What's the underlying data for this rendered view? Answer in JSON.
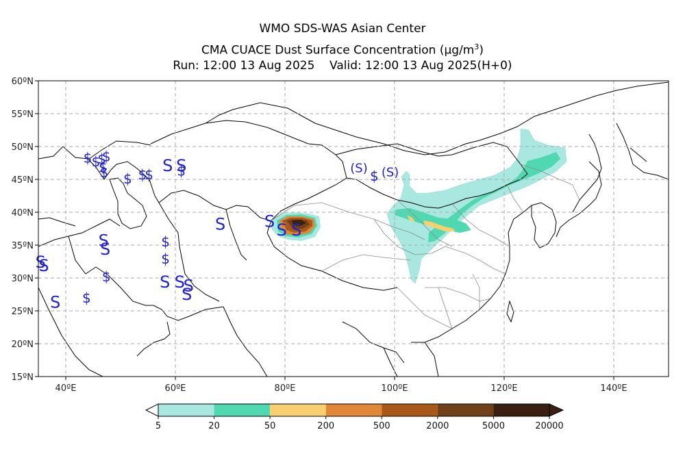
{
  "header": {
    "line1": "WMO SDS-WAS Asian Center",
    "line2_main": "CMA CUACE Dust Surface Concentration ",
    "line2_unit": "(μg/m",
    "line2_sup": "3",
    "line2_close": ")",
    "line3": "Run: 12:00 13 Aug 2025    Valid: 12:00 13 Aug 2025(H+0)"
  },
  "map": {
    "lon_range": [
      35,
      150
    ],
    "lat_range": [
      15,
      60
    ],
    "lat_ticks": [
      {
        "value": 60,
        "label": "60ºN"
      },
      {
        "value": 55,
        "label": "55ºN"
      },
      {
        "value": 50,
        "label": "50ºN"
      },
      {
        "value": 45,
        "label": "45ºN"
      },
      {
        "value": 40,
        "label": "40ºN"
      },
      {
        "value": 35,
        "label": "35ºN"
      },
      {
        "value": 30,
        "label": "30ºN"
      },
      {
        "value": 25,
        "label": "25ºN"
      },
      {
        "value": 20,
        "label": "20ºN"
      },
      {
        "value": 15,
        "label": "15ºN"
      }
    ],
    "lon_ticks": [
      {
        "value": 40,
        "label": "40ºE"
      },
      {
        "value": 60,
        "label": "60ºE"
      },
      {
        "value": 80,
        "label": "80ºE"
      },
      {
        "value": 100,
        "label": "100ºE"
      },
      {
        "value": 120,
        "label": "120ºE"
      },
      {
        "value": 140,
        "label": "140ºE"
      }
    ],
    "grid_lines": true
  },
  "colorbar": {
    "colors": [
      "#a8e8e0",
      "#50d8b0",
      "#f8d070",
      "#e08838",
      "#a85818",
      "#704018",
      "#3a2010"
    ],
    "labels": [
      "5",
      "20",
      "50",
      "200",
      "500",
      "2000",
      "5000",
      "20000"
    ]
  },
  "dust_symbols": [
    {
      "lon": 44.0,
      "lat": 48.2,
      "symbol": "$"
    },
    {
      "lon": 45.5,
      "lat": 47.6,
      "symbol": "$"
    },
    {
      "lon": 46.6,
      "lat": 48.0,
      "symbol": "$"
    },
    {
      "lon": 47.4,
      "lat": 48.4,
      "symbol": "$"
    },
    {
      "lon": 46.8,
      "lat": 46.7,
      "symbol": "$"
    },
    {
      "lon": 47.0,
      "lat": 46.0,
      "symbol": "$"
    },
    {
      "lon": 51.3,
      "lat": 45.0,
      "symbol": "$"
    },
    {
      "lon": 54.0,
      "lat": 45.6,
      "symbol": "$"
    },
    {
      "lon": 55.2,
      "lat": 45.6,
      "symbol": "$"
    },
    {
      "lon": 58.6,
      "lat": 47.1,
      "symbol": "S"
    },
    {
      "lon": 61.1,
      "lat": 47.1,
      "symbol": "S"
    },
    {
      "lon": 61.1,
      "lat": 46.2,
      "symbol": "$"
    },
    {
      "lon": 68.2,
      "lat": 38.2,
      "symbol": "S"
    },
    {
      "lon": 77.2,
      "lat": 38.6,
      "symbol": "S"
    },
    {
      "lon": 79.4,
      "lat": 37.3,
      "symbol": "S"
    },
    {
      "lon": 82.1,
      "lat": 37.3,
      "symbol": "S"
    },
    {
      "lon": 93.5,
      "lat": 46.7,
      "symbol": "(S)"
    },
    {
      "lon": 96.3,
      "lat": 45.4,
      "symbol": "$"
    },
    {
      "lon": 99.2,
      "lat": 46.1,
      "symbol": "(S)"
    },
    {
      "lon": 46.9,
      "lat": 35.7,
      "symbol": "S"
    },
    {
      "lon": 47.2,
      "lat": 34.4,
      "symbol": "S"
    },
    {
      "lon": 58.2,
      "lat": 35.4,
      "symbol": "$"
    },
    {
      "lon": 58.2,
      "lat": 32.8,
      "symbol": "$"
    },
    {
      "lon": 35.4,
      "lat": 32.4,
      "symbol": "S"
    },
    {
      "lon": 36.0,
      "lat": 31.9,
      "symbol": "S"
    },
    {
      "lon": 47.4,
      "lat": 30.1,
      "symbol": "$"
    },
    {
      "lon": 58.1,
      "lat": 29.4,
      "symbol": "S"
    },
    {
      "lon": 60.8,
      "lat": 29.4,
      "symbol": "S"
    },
    {
      "lon": 62.4,
      "lat": 28.8,
      "symbol": "S"
    },
    {
      "lon": 62.1,
      "lat": 27.5,
      "symbol": "S"
    },
    {
      "lon": 38.1,
      "lat": 26.3,
      "symbol": "S"
    },
    {
      "lon": 43.8,
      "lat": 26.9,
      "symbol": "$"
    }
  ]
}
